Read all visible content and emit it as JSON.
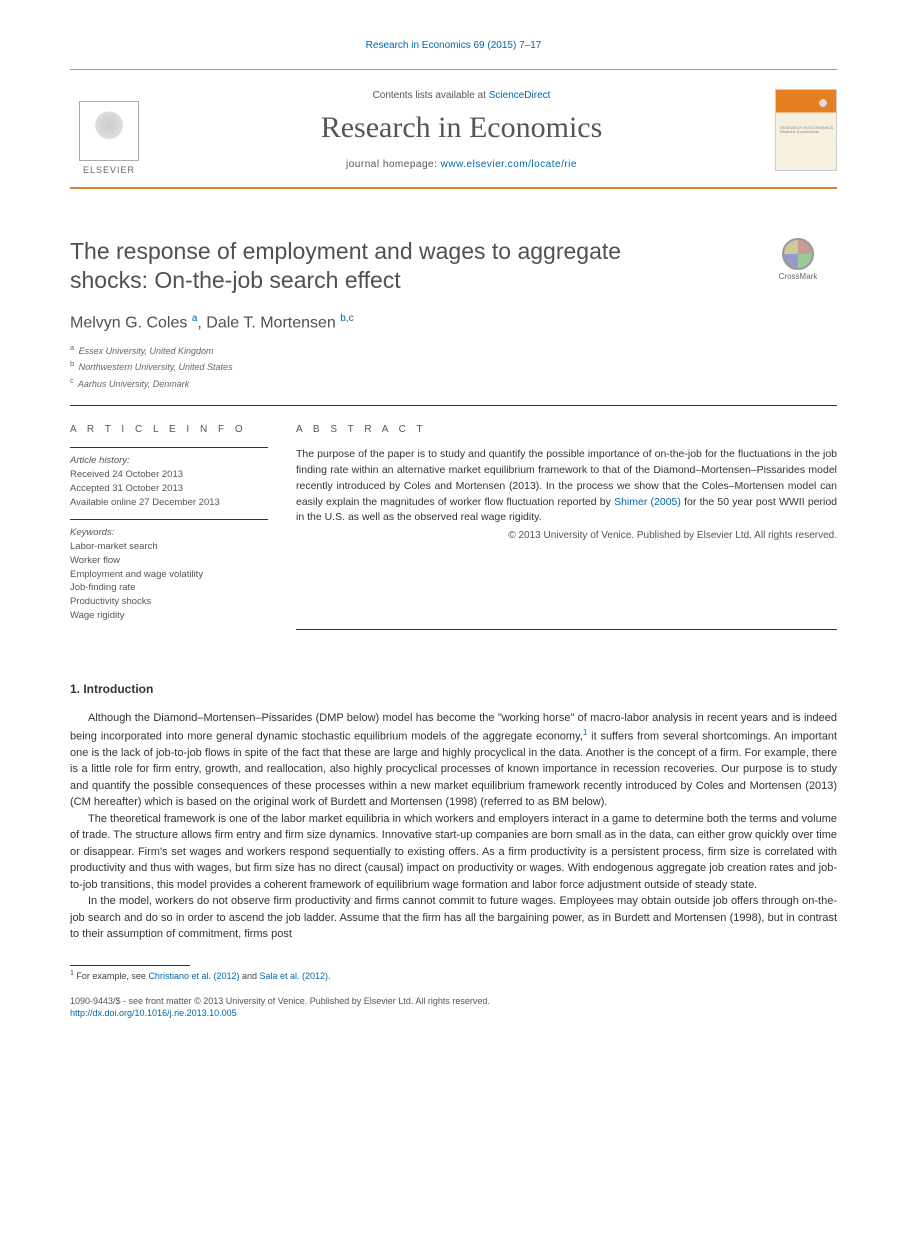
{
  "header": {
    "reference_link": "Research in Economics 69 (2015) 7–17",
    "contents_prefix": "Contents lists available at ",
    "contents_link": "ScienceDirect",
    "journal_title": "Research in Economics",
    "homepage_prefix": "journal homepage: ",
    "homepage_url": "www.elsevier.com/locate/rie",
    "elsevier_label": "ELSEVIER",
    "cover_text": "RESEARCH IN\nECONOMICS\nRicerche Economiche"
  },
  "crossmark": {
    "label": "CrossMark"
  },
  "article": {
    "title": "The response of employment and wages to aggregate shocks: On-the-job search effect",
    "authors_html": "Melvyn G. Coles|a|, Dale T. Mortensen|b,c",
    "authors": [
      {
        "name": "Melvyn G. Coles ",
        "sup": "a"
      },
      {
        "name": ", Dale T. Mortensen ",
        "sup": "b,c"
      }
    ],
    "affiliations": [
      {
        "sup": "a",
        "text": " Essex University, United Kingdom"
      },
      {
        "sup": "b",
        "text": " Northwestern University, United States"
      },
      {
        "sup": "c",
        "text": " Aarhus University, Denmark"
      }
    ]
  },
  "info": {
    "label": "A R T I C L E  I N F O",
    "history_label": "Article history:",
    "received": "Received 24 October 2013",
    "accepted": "Accepted 31 October 2013",
    "online": "Available online 27 December 2013",
    "keywords_label": "Keywords:",
    "keywords": [
      "Labor-market search",
      "Worker flow",
      "Employment and wage volatility",
      "Job-finding rate",
      "Productivity shocks",
      "Wage rigidity"
    ]
  },
  "abstract": {
    "label": "A B S T R A C T",
    "text_pre": "The purpose of the paper is to study and quantify the possible importance of on-the-job for the fluctuations in the job finding rate within an alternative market equilibrium framework to that of the Diamond–Mortensen–Pissarides model recently introduced by Coles and Mortensen (2013). In the process we show that the Coles–Mortensen model can easily explain the magnitudes of worker flow fluctuation reported by ",
    "link": "Shimer (2005)",
    "text_post": " for the 50 year post WWII period in the U.S. as well as the observed real wage rigidity.",
    "copyright": "© 2013 University of Venice. Published by Elsevier Ltd. All rights reserved."
  },
  "body": {
    "heading": "1. Introduction",
    "p1_pre": "Although the Diamond–Mortensen–Pissarides (DMP below) model has become the \"working horse\" of macro-labor analysis in recent years and is indeed being incorporated into more general dynamic stochastic equilibrium models of the aggregate economy,",
    "p1_sup": "1",
    "p1_post": " it suffers from several shortcomings. An important one is the lack of job-to-job flows in spite of the fact that these are large and highly procyclical in the data. Another is the concept of a firm. For example, there is a little role for firm entry, growth, and reallocation, also highly procyclical processes of known importance in recession recoveries. Our purpose is to study and quantify the possible consequences of these processes within a new market equilibrium framework recently introduced by Coles and Mortensen (2013) (CM hereafter) which is based on the original work of Burdett and Mortensen (1998) (referred to as BM below).",
    "p2": "The theoretical framework is one of the labor market equilibria in which workers and employers interact in a game to determine both the terms and volume of trade. The structure allows firm entry and firm size dynamics. Innovative start-up companies are born small as in the data, can either grow quickly over time or disappear. Firm's set wages and workers respond sequentially to existing offers. As a firm productivity is a persistent process, firm size is correlated with productivity and thus with wages, but firm size has no direct (causal) impact on productivity or wages. With endogenous aggregate job creation rates and job-to-job transitions, this model provides a coherent framework of equilibrium wage formation and labor force adjustment outside of steady state.",
    "p3": "In the model, workers do not observe firm productivity and firms cannot commit to future wages. Employees may obtain outside job offers through on-the-job search and do so in order to ascend the job ladder. Assume that the firm has all the bargaining power, as in Burdett and Mortensen (1998), but in contrast to their assumption of commitment, firms post"
  },
  "footnote": {
    "sup": "1",
    "text_pre": " For example, see ",
    "link1": "Christiano et al. (2012)",
    "mid": " and ",
    "link2": "Sala et al. (2012)",
    "text_post": "."
  },
  "footer": {
    "issn_line": "1090-9443/$ - see front matter © 2013 University of Venice. Published by Elsevier Ltd. All rights reserved.",
    "doi": "http://dx.doi.org/10.1016/j.rie.2013.10.005"
  },
  "colors": {
    "link": "#0066aa",
    "accent": "#e67e22",
    "text": "#333333",
    "muted": "#555555"
  }
}
